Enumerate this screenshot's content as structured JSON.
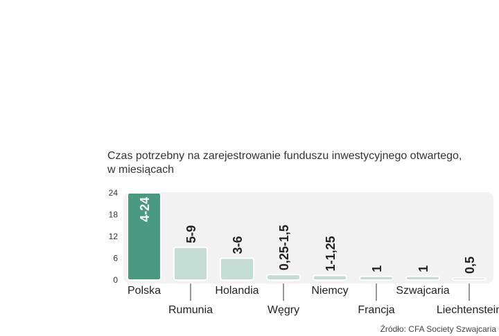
{
  "chart_data": {
    "type": "bar",
    "title_line1": "Czas potrzebny na zarejestrowanie funduszu inwestycyjnego otwartego,",
    "title_line2": "w miesiącach",
    "categories": [
      "Polska",
      "Rumunia",
      "Holandia",
      "Węgry",
      "Niemcy",
      "Francja",
      "Szwajcaria",
      "Liechtenstein"
    ],
    "values": [
      24,
      9,
      6,
      1.5,
      1.25,
      1,
      1,
      0.5
    ],
    "labels": [
      "4-24",
      "5-9",
      "3-6",
      "0,25-1,5",
      "1-1,25",
      "1",
      "1",
      "0,5"
    ],
    "y_ticks": [
      0,
      6,
      12,
      18,
      24
    ],
    "ylim": [
      0,
      24
    ],
    "highlight_index": 0,
    "colors": {
      "highlight": "#4a9a82",
      "bar": "#c3ddd5",
      "bar_stroke": "#ffffff",
      "plot_bg": "#f2f2f2",
      "text": "#222222"
    },
    "source": "Źródło: CFA Society Szwajcaria"
  }
}
